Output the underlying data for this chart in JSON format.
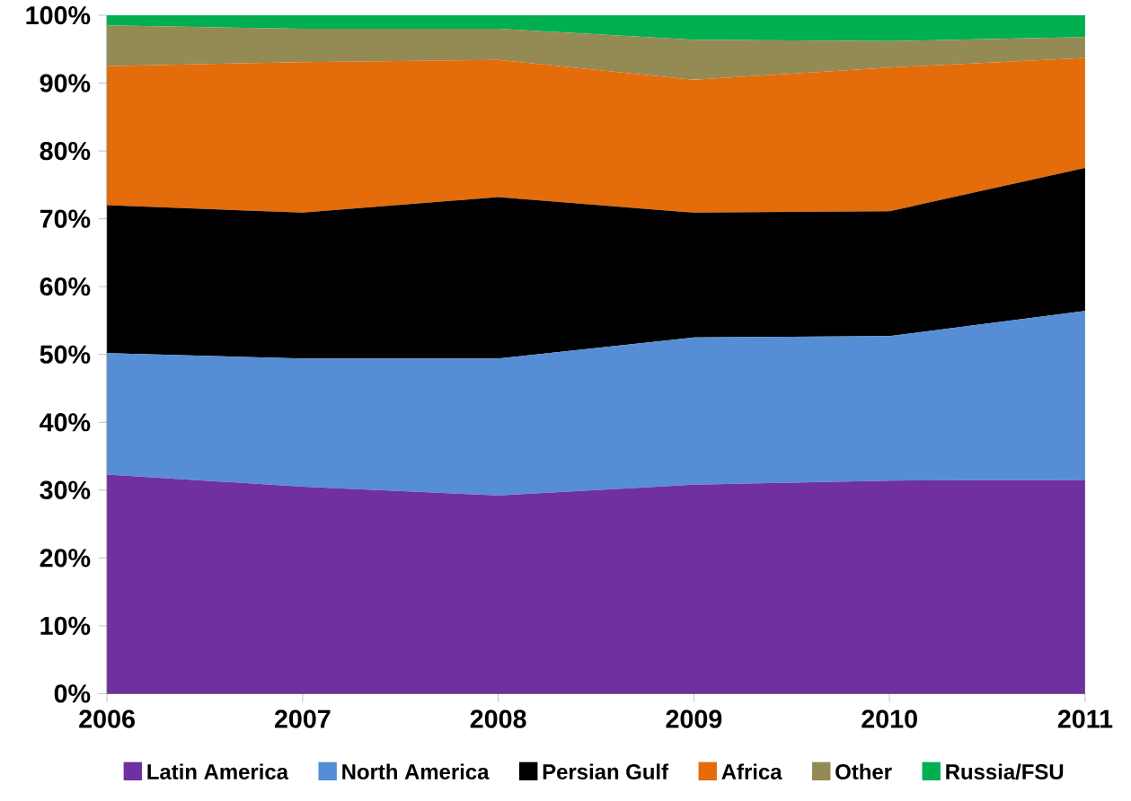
{
  "chart_data": {
    "type": "area",
    "stacked": true,
    "legend": "bottom",
    "categories": [
      "2006",
      "2007",
      "2008",
      "2009",
      "2010",
      "2011"
    ],
    "ylim": [
      0,
      100
    ],
    "yticks": [
      {
        "value": 0,
        "label": "0%"
      },
      {
        "value": 10,
        "label": "10%"
      },
      {
        "value": 20,
        "label": "20%"
      },
      {
        "value": 30,
        "label": "30%"
      },
      {
        "value": 40,
        "label": "40%"
      },
      {
        "value": 50,
        "label": "50%"
      },
      {
        "value": 60,
        "label": "60%"
      },
      {
        "value": 70,
        "label": "70%"
      },
      {
        "value": 80,
        "label": "80%"
      },
      {
        "value": 90,
        "label": "90%"
      },
      {
        "value": 100,
        "label": "100%"
      }
    ],
    "series": [
      {
        "name": "Latin America",
        "color": "#7030a0",
        "values": [
          32.3,
          30.5,
          29.2,
          30.8,
          31.4,
          31.5
        ]
      },
      {
        "name": "North America",
        "color": "#558ed5",
        "values": [
          17.9,
          18.9,
          20.2,
          21.7,
          21.3,
          24.9
        ]
      },
      {
        "name": "Persian Gulf",
        "color": "#000000",
        "values": [
          21.8,
          21.5,
          23.8,
          18.4,
          18.4,
          21.1
        ]
      },
      {
        "name": "Africa",
        "color": "#e46c0a",
        "values": [
          20.5,
          22.2,
          20.2,
          19.6,
          21.2,
          16.2
        ]
      },
      {
        "name": "Other",
        "color": "#948a54",
        "values": [
          6.0,
          4.9,
          4.6,
          5.9,
          3.9,
          3.1
        ]
      },
      {
        "name": "Russia/FSU",
        "color": "#00b050",
        "values": [
          1.5,
          2.0,
          2.0,
          3.6,
          3.8,
          3.2
        ]
      }
    ]
  }
}
